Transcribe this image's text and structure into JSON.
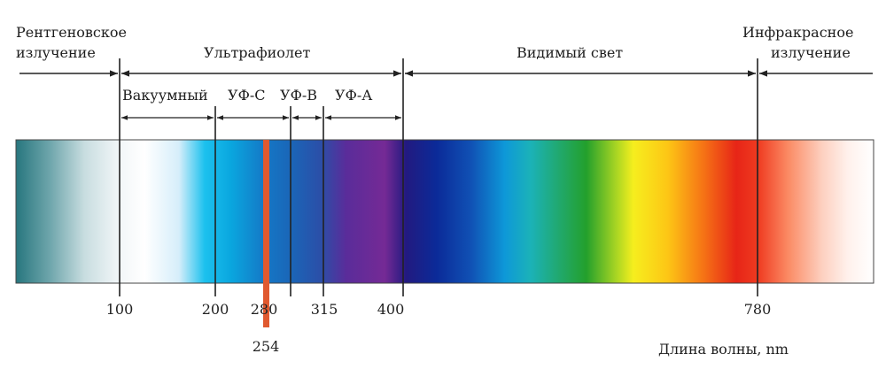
{
  "regions": {
    "xray": {
      "line1": "Рентгеновское",
      "line2": "излучение"
    },
    "uv": "Ультрафиолет",
    "visible": "Видимый свет",
    "ir": {
      "line1": "Инфракрасное",
      "line2": "излучение"
    }
  },
  "uv_subbands": {
    "vacuum": "Вакуумный",
    "uvc": "УФ-С",
    "uvb": "УФ-В",
    "uva": "УФ-А"
  },
  "ticks": [
    "100",
    "200",
    "280",
    "315",
    "400",
    "780"
  ],
  "marker": {
    "label": "254",
    "color": "#e0592f"
  },
  "axis_label": "Длина волны, nm"
}
